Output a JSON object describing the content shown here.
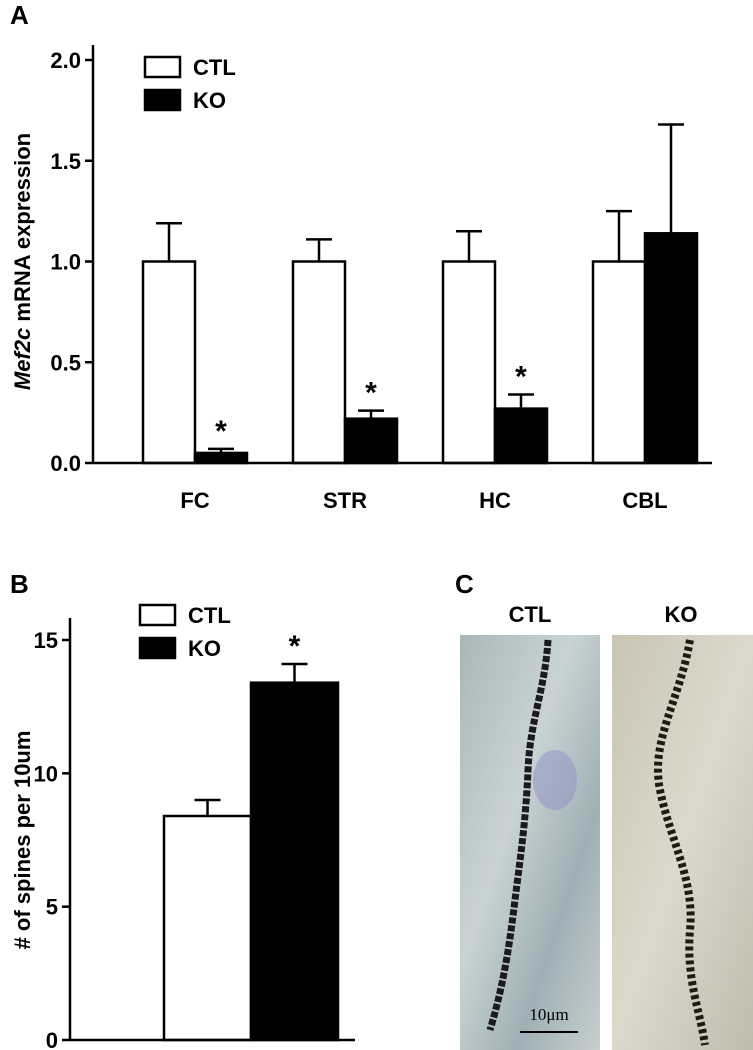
{
  "panel_labels": [
    "A",
    "B",
    "C"
  ],
  "chart_data": [
    {
      "type": "bar",
      "ylabel": [
        "Mef2c",
        " mRNA expression"
      ],
      "categories": [
        "FC",
        "STR",
        "HC",
        "CBL"
      ],
      "series": [
        {
          "name": "CTL",
          "color": "#ffffff",
          "values": [
            1.0,
            1.0,
            1.0,
            1.0
          ],
          "errors": [
            0.19,
            0.11,
            0.15,
            0.25
          ]
        },
        {
          "name": "KO",
          "color": "#000000",
          "values": [
            0.05,
            0.22,
            0.27,
            1.14
          ],
          "errors": [
            0.02,
            0.04,
            0.07,
            0.54
          ]
        }
      ],
      "ylim": [
        0,
        2.0
      ],
      "yticks": [
        {
          "value": 0,
          "label": "0.0"
        },
        0.5,
        {
          "value": 1.0,
          "label": "1.0"
        },
        1.5,
        {
          "value": 2.0,
          "label": "2.0"
        }
      ],
      "legend": "upper left",
      "annotations": [
        {
          "text": "*",
          "category": 0
        },
        {
          "text": "*",
          "category": 1
        },
        {
          "text": "*",
          "category": 2
        }
      ]
    },
    {
      "type": "bar",
      "ylabel": "# of spines per 10um",
      "categories": [
        null
      ],
      "series": [
        {
          "name": "CTL",
          "color": "#ffffff",
          "values": [
            8.4
          ],
          "errors": [
            0.6
          ]
        },
        {
          "name": "KO",
          "color": "#000000",
          "values": [
            13.4
          ],
          "errors": [
            0.7
          ]
        }
      ],
      "ylim": [
        0,
        15
      ],
      "yticks": [
        0,
        5,
        10,
        15
      ],
      "legend": "upper left",
      "annotations": [
        {
          "text": "*",
          "category": 0
        }
      ]
    }
  ],
  "micrographs": {
    "labels": [
      "CTL",
      "KO"
    ],
    "scale_bar": "10μm"
  }
}
